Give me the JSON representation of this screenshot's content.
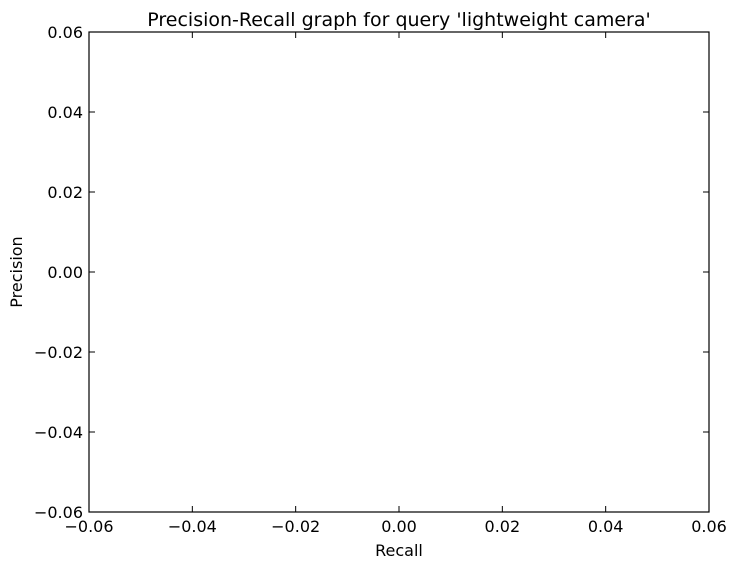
{
  "chart_data": {
    "type": "line",
    "title": "Precision-Recall graph for query 'lightweight camera'",
    "xlabel": "Recall",
    "ylabel": "Precision",
    "xlim": [
      -0.06,
      0.06
    ],
    "ylim": [
      -0.06,
      0.06
    ],
    "x_ticks": [
      -0.06,
      -0.04,
      -0.02,
      0.0,
      0.02,
      0.04,
      0.06
    ],
    "y_ticks": [
      -0.06,
      -0.04,
      -0.02,
      0.0,
      0.02,
      0.04,
      0.06
    ],
    "x_tick_labels": [
      "−0.06",
      "−0.04",
      "−0.02",
      "0.00",
      "0.02",
      "0.04",
      "0.06"
    ],
    "y_tick_labels": [
      "−0.06",
      "−0.04",
      "−0.02",
      "0.00",
      "0.02",
      "0.04",
      "0.06"
    ],
    "grid": false,
    "series": [
      {
        "x": [],
        "y": []
      }
    ],
    "colors": {
      "axes": "#000000",
      "background": "#ffffff",
      "line": "#0000ff"
    }
  }
}
